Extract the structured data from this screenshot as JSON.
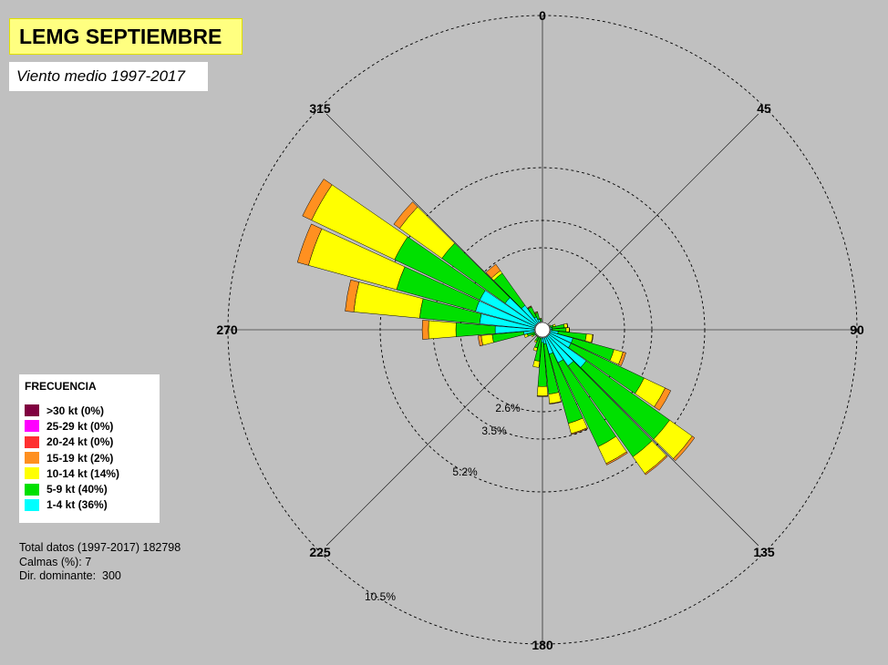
{
  "title": "LEMG SEPTIEMBRE",
  "subtitle": "Viento medio 1997-2017",
  "legend": {
    "title": "FRECUENCIA",
    "items": [
      {
        "label": ">30 kt (0%)",
        "color": "#800040"
      },
      {
        "label": "25-29 kt (0%)",
        "color": "#ff00ff"
      },
      {
        "label": "20-24 kt (0%)",
        "color": "#ff3030"
      },
      {
        "label": "15-19 kt (2%)",
        "color": "#ff9020"
      },
      {
        "label": "10-14 kt (14%)",
        "color": "#ffff00"
      },
      {
        "label": "5-9 kt (40%)",
        "color": "#00e000"
      },
      {
        "label": "1-4 kt (36%)",
        "color": "#00ffff"
      }
    ]
  },
  "stats": {
    "total": "Total datos (1997-2017) 182798",
    "calmas": "Calmas (%): 7",
    "dominante": "Dir. dominante:  300"
  },
  "chart_data": {
    "type": "wind-rose",
    "direction_labels": [
      "0",
      "45",
      "90",
      "135",
      "180",
      "225",
      "270",
      "315"
    ],
    "ring_labels": [
      "2.6%",
      "3.5%",
      "5.2%",
      "10.5%"
    ],
    "rings": [
      2.6,
      3.5,
      5.2,
      10.5
    ],
    "speed_bins": [
      "1-4 kt",
      "5-9 kt",
      "10-14 kt",
      "15-19 kt",
      "20-24 kt",
      "25-29 kt",
      ">30 kt"
    ],
    "directions": [
      {
        "dir": 0,
        "cumulative": [
          0.1,
          0.15,
          0.16,
          0.16
        ]
      },
      {
        "dir": 10,
        "cumulative": [
          0.1,
          0.15,
          0.16,
          0.16
        ]
      },
      {
        "dir": 20,
        "cumulative": [
          0.1,
          0.2,
          0.22,
          0.22
        ]
      },
      {
        "dir": 30,
        "cumulative": [
          0.1,
          0.2,
          0.22,
          0.22
        ]
      },
      {
        "dir": 40,
        "cumulative": [
          0.1,
          0.2,
          0.22,
          0.22
        ]
      },
      {
        "dir": 50,
        "cumulative": [
          0.1,
          0.2,
          0.23,
          0.23
        ]
      },
      {
        "dir": 60,
        "cumulative": [
          0.12,
          0.25,
          0.28,
          0.28
        ]
      },
      {
        "dir": 70,
        "cumulative": [
          0.16,
          0.36,
          0.43,
          0.43
        ]
      },
      {
        "dir": 80,
        "cumulative": [
          0.3,
          0.7,
          0.8,
          0.81
        ]
      },
      {
        "dir": 90,
        "cumulative": [
          0.3,
          0.75,
          0.85,
          0.86
        ]
      },
      {
        "dir": 100,
        "cumulative": [
          0.5,
          1.4,
          1.6,
          1.62
        ]
      },
      {
        "dir": 110,
        "cumulative": [
          1.0,
          2.35,
          2.65,
          2.75
        ]
      },
      {
        "dir": 120,
        "cumulative": [
          1.0,
          3.6,
          4.35,
          4.55
        ]
      },
      {
        "dir": 130,
        "cumulative": [
          1.7,
          5.0,
          5.95,
          6.05
        ]
      },
      {
        "dir": 140,
        "cumulative": [
          1.4,
          5.0,
          5.7,
          5.75
        ]
      },
      {
        "dir": 150,
        "cumulative": [
          1.15,
          4.15,
          4.75,
          4.8
        ]
      },
      {
        "dir": 160,
        "cumulative": [
          0.8,
          3.1,
          3.45,
          3.48
        ]
      },
      {
        "dir": 170,
        "cumulative": [
          0.45,
          2.05,
          2.35,
          2.37
        ]
      },
      {
        "dir": 180,
        "cumulative": [
          0.4,
          1.8,
          2.1,
          2.12
        ]
      },
      {
        "dir": 190,
        "cumulative": [
          0.2,
          1.0,
          1.2,
          1.2
        ]
      },
      {
        "dir": 200,
        "cumulative": [
          0.2,
          0.6,
          0.7,
          0.7
        ]
      },
      {
        "dir": 210,
        "cumulative": [
          0.15,
          0.4,
          0.45,
          0.45
        ]
      },
      {
        "dir": 220,
        "cumulative": [
          0.12,
          0.25,
          0.27,
          0.27
        ]
      },
      {
        "dir": 230,
        "cumulative": [
          0.12,
          0.25,
          0.27,
          0.27
        ]
      },
      {
        "dir": 240,
        "cumulative": [
          0.15,
          0.35,
          0.4,
          0.4
        ]
      },
      {
        "dir": 250,
        "cumulative": [
          0.2,
          0.5,
          0.6,
          0.6
        ]
      },
      {
        "dir": 260,
        "cumulative": [
          0.6,
          1.6,
          1.95,
          2.05
        ]
      },
      {
        "dir": 270,
        "cumulative": [
          1.5,
          2.75,
          3.65,
          3.85
        ]
      },
      {
        "dir": 280,
        "cumulative": [
          2.0,
          3.95,
          6.15,
          6.45
        ]
      },
      {
        "dir": 290,
        "cumulative": [
          2.2,
          4.85,
          8.0,
          8.4
        ]
      },
      {
        "dir": 300,
        "cumulative": [
          2.2,
          5.25,
          8.45,
          8.8
        ]
      },
      {
        "dir": 310,
        "cumulative": [
          1.45,
          3.95,
          5.65,
          5.9
        ]
      },
      {
        "dir": 320,
        "cumulative": [
          0.95,
          2.2,
          2.3,
          2.55
        ]
      },
      {
        "dir": 330,
        "cumulative": [
          0.45,
          0.8,
          0.82,
          0.84
        ]
      },
      {
        "dir": 340,
        "cumulative": [
          0.35,
          0.55,
          0.58,
          0.6
        ]
      },
      {
        "dir": 350,
        "cumulative": [
          0.2,
          0.35,
          0.37,
          0.37
        ]
      }
    ]
  }
}
